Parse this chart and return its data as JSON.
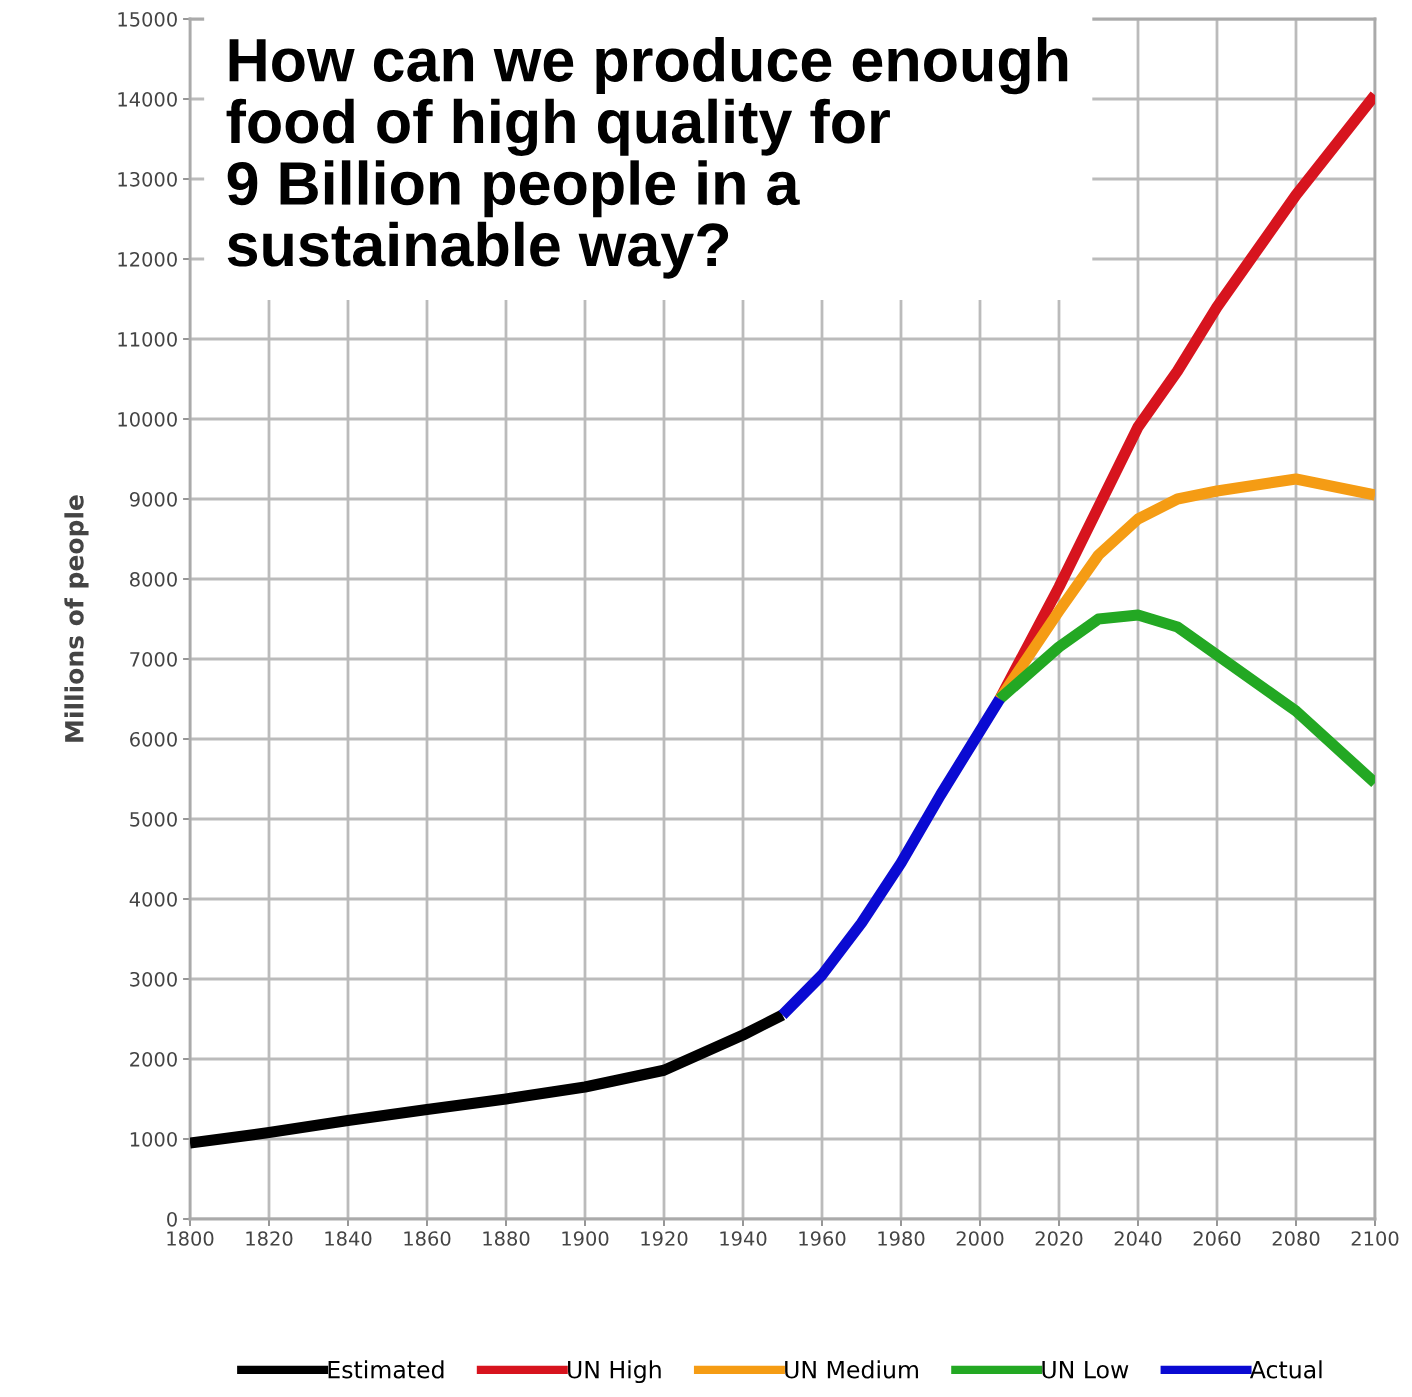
{
  "chart_data": {
    "type": "line",
    "title": "How can we produce enough\nfood of high quality for\n9 Billion people in a\nsustainable way?",
    "ylabel": "Millions of people",
    "series": [
      {
        "name": "Estimated",
        "color": "#000000",
        "x": [
          1800,
          1820,
          1840,
          1860,
          1880,
          1900,
          1920,
          1940,
          1950
        ],
        "values": [
          950,
          1080,
          1230,
          1370,
          1500,
          1650,
          1860,
          2300,
          2550
        ]
      },
      {
        "name": "UN High",
        "color": "#d7141e",
        "x": [
          2005,
          2020,
          2040,
          2050,
          2060,
          2080,
          2100
        ],
        "values": [
          6500,
          7900,
          9900,
          10600,
          11400,
          12800,
          14050
        ]
      },
      {
        "name": "UN Medium",
        "color": "#f59c14",
        "x": [
          2005,
          2020,
          2030,
          2040,
          2050,
          2060,
          2080,
          2100
        ],
        "values": [
          6500,
          7600,
          8300,
          8750,
          9000,
          9100,
          9250,
          9050
        ]
      },
      {
        "name": "UN Low",
        "color": "#23a823",
        "x": [
          2005,
          2020,
          2030,
          2040,
          2050,
          2060,
          2080,
          2100
        ],
        "values": [
          6500,
          7150,
          7500,
          7550,
          7400,
          7050,
          6350,
          5450
        ]
      },
      {
        "name": "Actual",
        "color": "#0a0ad2",
        "x": [
          1950,
          1960,
          1970,
          1980,
          1990,
          2000,
          2005
        ],
        "values": [
          2550,
          3050,
          3700,
          4450,
          5300,
          6100,
          6500
        ]
      }
    ],
    "xlim": [
      1800,
      2100
    ],
    "xticks": [
      1800,
      1820,
      1840,
      1860,
      1880,
      1900,
      1920,
      1940,
      1960,
      1980,
      2000,
      2020,
      2040,
      2060,
      2080,
      2100
    ],
    "ylim": [
      0,
      15000
    ],
    "yticks": [
      0,
      1000,
      2000,
      3000,
      4000,
      5000,
      6000,
      7000,
      8000,
      9000,
      10000,
      11000,
      12000,
      13000,
      14000,
      15000
    ],
    "grid": true,
    "legend": "bottom",
    "marker": "none",
    "line_style": "solid"
  }
}
